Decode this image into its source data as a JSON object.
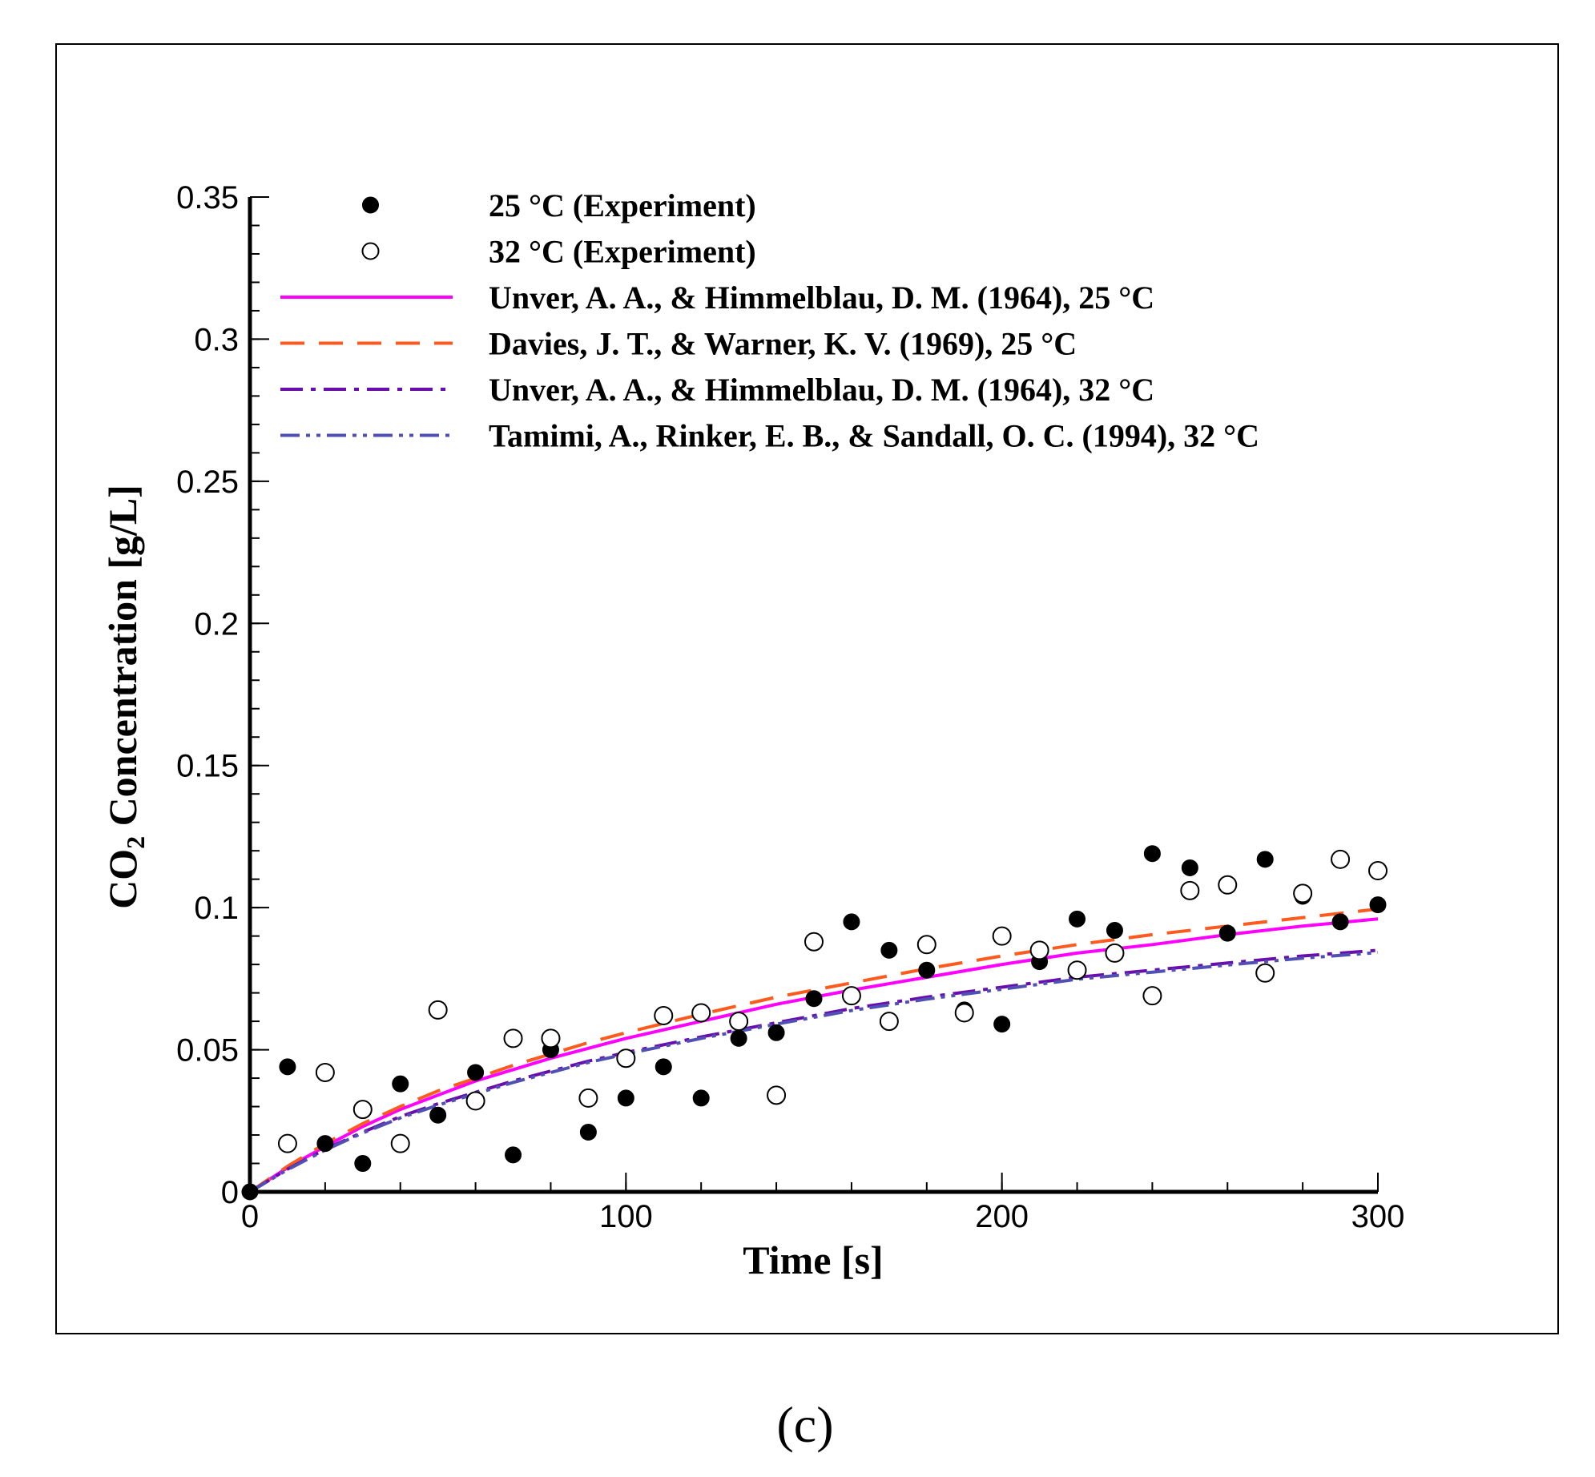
{
  "figure": {
    "panel_label": "(c)"
  },
  "chart_data": {
    "type": "scatter",
    "title": "",
    "xlabel": "Time [s]",
    "ylabel_prefix": "CO",
    "ylabel_subscript": "2",
    "ylabel_suffix": " Concentration [g/L]",
    "xlim": [
      0,
      300
    ],
    "ylim": [
      0,
      0.35
    ],
    "x_ticks": [
      0,
      100,
      200,
      300
    ],
    "x_tick_labels": [
      "0",
      "100",
      "200",
      "300"
    ],
    "y_ticks": [
      0,
      0.05,
      0.1,
      0.15,
      0.2,
      0.25,
      0.3,
      0.35
    ],
    "y_tick_labels": [
      "0",
      "0.05",
      "0.1",
      "0.15",
      "0.2",
      "0.25",
      "0.3",
      "0.35"
    ],
    "grid": false,
    "legend_position": "top",
    "series": [
      {
        "name": "25 °C (Experiment)",
        "kind": "markers",
        "marker": "filled-circle",
        "color": "#000000",
        "x": [
          0,
          10,
          20,
          30,
          40,
          50,
          60,
          70,
          80,
          90,
          100,
          110,
          120,
          130,
          140,
          150,
          160,
          170,
          180,
          190,
          200,
          210,
          220,
          230,
          240,
          250,
          260,
          270,
          280,
          290,
          300
        ],
        "y": [
          0,
          0.044,
          0.017,
          0.01,
          0.038,
          0.027,
          0.042,
          0.013,
          0.05,
          0.021,
          0.033,
          0.044,
          0.033,
          0.054,
          0.056,
          0.068,
          0.095,
          0.085,
          0.078,
          0.064,
          0.059,
          0.081,
          0.096,
          0.092,
          0.119,
          0.114,
          0.091,
          0.117,
          0.104,
          0.095,
          0.101
        ]
      },
      {
        "name": "32 °C (Experiment)",
        "kind": "markers",
        "marker": "open-circle",
        "color": "#000000",
        "x": [
          10,
          20,
          30,
          40,
          50,
          60,
          70,
          80,
          90,
          100,
          110,
          120,
          130,
          140,
          150,
          160,
          170,
          180,
          190,
          200,
          210,
          220,
          230,
          240,
          250,
          260,
          270,
          280,
          290,
          300
        ],
        "y": [
          0.017,
          0.042,
          0.029,
          0.017,
          0.064,
          0.032,
          0.054,
          0.054,
          0.033,
          0.047,
          0.062,
          0.063,
          0.06,
          0.034,
          0.088,
          0.069,
          0.06,
          0.087,
          0.063,
          0.09,
          0.085,
          0.078,
          0.084,
          0.069,
          0.106,
          0.108,
          0.077,
          0.105,
          0.117,
          0.113
        ]
      },
      {
        "name": "Unver, A. A., & Himmelblau, D. M. (1964), 25 °C",
        "kind": "line",
        "dash": "solid",
        "color": "#ff00ff",
        "x": [
          0,
          10,
          20,
          30,
          40,
          50,
          60,
          70,
          80,
          90,
          100,
          120,
          140,
          160,
          180,
          200,
          220,
          240,
          260,
          280,
          300
        ],
        "y": [
          0,
          0.0085,
          0.016,
          0.023,
          0.029,
          0.034,
          0.039,
          0.043,
          0.047,
          0.0505,
          0.054,
          0.06,
          0.066,
          0.071,
          0.0755,
          0.08,
          0.084,
          0.087,
          0.0905,
          0.0935,
          0.096
        ]
      },
      {
        "name": "Davies, J. T., & Warner, K. V. (1969), 25 °C",
        "kind": "line",
        "dash": "dashed",
        "color": "#ff5a1e",
        "x": [
          0,
          10,
          20,
          30,
          40,
          50,
          60,
          70,
          80,
          90,
          100,
          120,
          140,
          160,
          180,
          200,
          220,
          240,
          260,
          280,
          300
        ],
        "y": [
          0,
          0.009,
          0.017,
          0.024,
          0.03,
          0.0355,
          0.04,
          0.0445,
          0.0485,
          0.0525,
          0.056,
          0.0625,
          0.0685,
          0.0735,
          0.0785,
          0.083,
          0.087,
          0.0905,
          0.0935,
          0.0965,
          0.0995
        ]
      },
      {
        "name": "Unver, A. A., & Himmelblau, D. M. (1964), 32 °C",
        "kind": "line",
        "dash": "dash-dot",
        "color": "#6a0dad",
        "x": [
          0,
          10,
          20,
          30,
          40,
          50,
          60,
          70,
          80,
          90,
          100,
          120,
          140,
          160,
          180,
          200,
          220,
          240,
          260,
          280,
          300
        ],
        "y": [
          0,
          0.008,
          0.015,
          0.021,
          0.0265,
          0.031,
          0.035,
          0.039,
          0.0425,
          0.046,
          0.049,
          0.0545,
          0.0595,
          0.0645,
          0.0685,
          0.072,
          0.0755,
          0.078,
          0.0805,
          0.083,
          0.085
        ]
      },
      {
        "name": "Tamimi, A., Rinker, E. B., & Sandall, O. C. (1994), 32 °C",
        "kind": "line",
        "dash": "dash-dot-dot",
        "color": "#5050b4",
        "x": [
          0,
          10,
          20,
          30,
          40,
          50,
          60,
          70,
          80,
          90,
          100,
          120,
          140,
          160,
          180,
          200,
          220,
          240,
          260,
          280,
          300
        ],
        "y": [
          0,
          0.0078,
          0.0147,
          0.0207,
          0.026,
          0.0305,
          0.0345,
          0.0385,
          0.042,
          0.0455,
          0.0485,
          0.054,
          0.059,
          0.0638,
          0.0678,
          0.0713,
          0.0748,
          0.0773,
          0.0798,
          0.0822,
          0.0842
        ]
      }
    ]
  }
}
